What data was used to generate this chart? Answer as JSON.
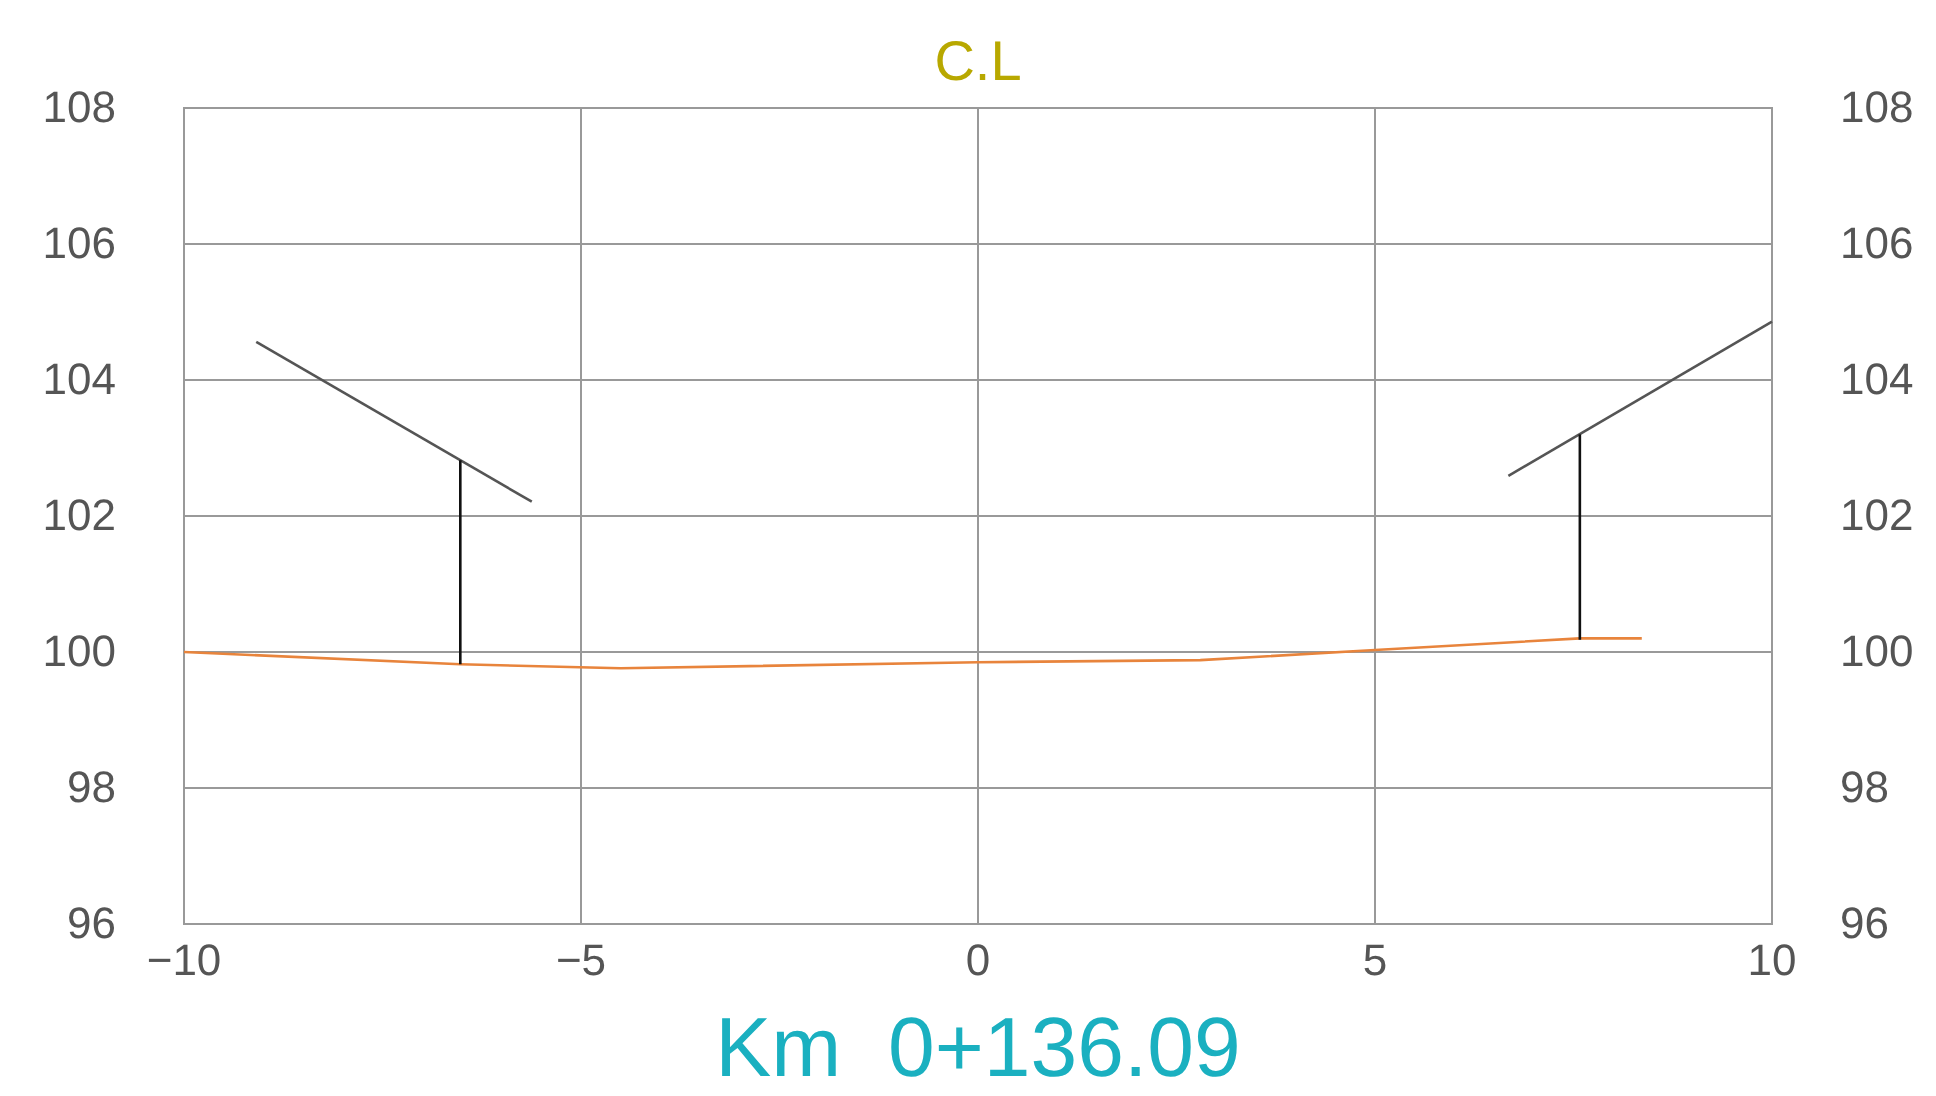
{
  "chart_data": {
    "type": "line",
    "title": "C.L",
    "annotations": [
      "Km  0+136.09"
    ],
    "xlim": [
      -10,
      10
    ],
    "xticks": [
      -10,
      -5,
      0,
      5,
      10
    ],
    "ylim": [
      96,
      108
    ],
    "yticks": [
      96,
      98,
      100,
      102,
      104,
      106,
      108
    ],
    "y2lim": [
      96,
      108
    ],
    "y2ticks": [
      96,
      98,
      100,
      102,
      104,
      106,
      108
    ],
    "grid": true,
    "marker": "none",
    "line_style": "solid",
    "series": [
      {
        "color": "#e8843c",
        "x": [
          -10,
          -6.52,
          -4.5,
          0,
          2.8,
          5,
          7.58,
          8.36
        ],
        "values": [
          100,
          99.82,
          99.76,
          99.85,
          99.88,
          100.03,
          100.2,
          100.2
        ]
      },
      {
        "color": "#555555",
        "x": [
          -9.09,
          -5.62
        ],
        "values": [
          104.56,
          102.21
        ]
      },
      {
        "color": "#111111",
        "x": [
          -6.52,
          -6.52
        ],
        "values": [
          102.82,
          99.82
        ]
      },
      {
        "color": "#555555",
        "x": [
          6.68,
          10
        ],
        "values": [
          102.59,
          104.86
        ]
      },
      {
        "color": "#111111",
        "x": [
          7.58,
          7.58
        ],
        "values": [
          103.2,
          100.18
        ]
      }
    ]
  }
}
